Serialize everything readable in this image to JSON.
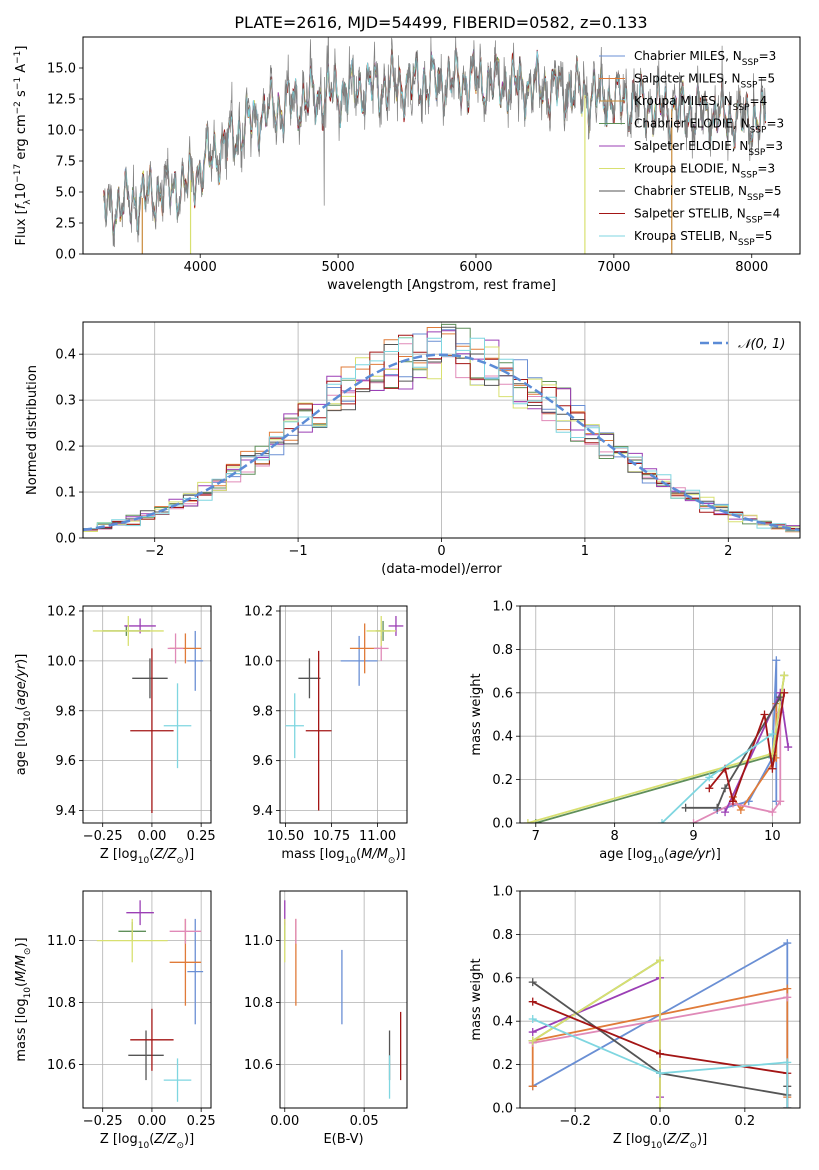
{
  "figure_title": "PLATE=2616, MJD=54499, FIBERID=0582, z=0.133",
  "chart_data": [
    {
      "id": "spectrum",
      "type": "line",
      "title": "PLATE=2616, MJD=54499, FIBERID=0582, z=0.133",
      "xlabel": "wavelength [Angstrom, rest frame]",
      "ylabel": "Flux [f_λ 10^-17 erg cm^-2 s^-1 A^-1]",
      "xlim": [
        3150,
        8350
      ],
      "ylim": [
        0,
        17.5
      ],
      "xticks": [
        4000,
        5000,
        6000,
        7000,
        8000
      ],
      "yticks": [
        0.0,
        2.5,
        5.0,
        7.5,
        10.0,
        12.5,
        15.0
      ],
      "legend_position": "top-right",
      "grid": false,
      "continuum_points": [
        [
          3300,
          3.6
        ],
        [
          3500,
          4.2
        ],
        [
          3700,
          5.0
        ],
        [
          3900,
          5.5
        ],
        [
          4000,
          7.0
        ],
        [
          4200,
          9.0
        ],
        [
          4400,
          11.0
        ],
        [
          4600,
          12.0
        ],
        [
          4800,
          12.5
        ],
        [
          5000,
          13.0
        ],
        [
          5300,
          13.5
        ],
        [
          5600,
          13.8
        ],
        [
          5900,
          14.0
        ],
        [
          6200,
          13.8
        ],
        [
          6500,
          13.4
        ],
        [
          6800,
          12.8
        ],
        [
          7100,
          12.3
        ],
        [
          7400,
          11.7
        ],
        [
          7700,
          11.3
        ],
        [
          8000,
          10.9
        ],
        [
          8100,
          10.7
        ]
      ],
      "spikes": [
        {
          "x": 3580,
          "series": "Kroupa MILES"
        },
        {
          "x": 3930,
          "series": "Kroupa ELODIE"
        },
        {
          "x": 6790,
          "series": "Kroupa ELODIE"
        },
        {
          "x": 7420,
          "series": "Kroupa MILES"
        }
      ],
      "series": [
        {
          "name": "Chabrier MILES, N_SSP=3",
          "color": "#6a8fd4"
        },
        {
          "name": "Salpeter MILES, N_SSP=5",
          "color": "#e07b39"
        },
        {
          "name": "Kroupa MILES, N_SSP=4",
          "color": "#c98a3a"
        },
        {
          "name": "Chabrier ELODIE, N_SSP=3",
          "color": "#5f8f5a"
        },
        {
          "name": "Salpeter ELODIE, N_SSP=3",
          "color": "#9b3fb5"
        },
        {
          "name": "Kroupa ELODIE, N_SSP=3",
          "color": "#d8e070"
        },
        {
          "name": "Chabrier STELIB, N_SSP=5",
          "color": "#555555"
        },
        {
          "name": "Salpeter STELIB, N_SSP=4",
          "color": "#a31515"
        },
        {
          "name": "Kroupa STELIB, N_SSP=5",
          "color": "#7fd6e0"
        }
      ],
      "data_color": "#808080"
    },
    {
      "id": "residuals",
      "type": "step",
      "xlabel": "(data-model)/error",
      "ylabel": "Normed distribution",
      "xlim": [
        -2.5,
        2.5
      ],
      "ylim": [
        0,
        0.47
      ],
      "xticks": [
        -2,
        -1,
        0,
        1,
        2
      ],
      "yticks": [
        0.0,
        0.1,
        0.2,
        0.3,
        0.4
      ],
      "grid": true,
      "legend": "𝒩(0, 1)",
      "legend_position": "top-right",
      "gauss_color": "#5b8bd6",
      "series_colors": [
        "#6a8fd4",
        "#e07b39",
        "#e08ab8",
        "#5f8f5a",
        "#9b3fb5",
        "#d8e070",
        "#555555",
        "#a31515",
        "#7fd6e0"
      ],
      "bins": 50
    },
    {
      "id": "age_vs_Z",
      "type": "errorbar",
      "xlabel": "Z [log10(Z/Z⊙)]",
      "ylabel": "age  [log10(age/yr)]",
      "xlim": [
        -0.35,
        0.3
      ],
      "ylim": [
        9.35,
        10.22
      ],
      "xticks": [
        -0.25,
        0.0,
        0.25
      ],
      "yticks": [
        9.4,
        9.6,
        9.8,
        10.0,
        10.2
      ],
      "grid": true,
      "points": [
        {
          "x": 0.22,
          "y": 10.0,
          "xerr": 0.04,
          "yerr": 0.12,
          "color": "#6a8fd4"
        },
        {
          "x": 0.17,
          "y": 10.05,
          "xerr": 0.08,
          "yerr": 0.06,
          "color": "#e07b39"
        },
        {
          "x": 0.12,
          "y": 10.05,
          "xerr": 0.04,
          "yerr": 0.06,
          "color": "#e08ab8"
        },
        {
          "x": -0.13,
          "y": 10.12,
          "xerr": 0.12,
          "yerr": 0.02,
          "color": "#5f8f5a"
        },
        {
          "x": -0.06,
          "y": 10.14,
          "xerr": 0.08,
          "yerr": 0.03,
          "color": "#9b3fb5"
        },
        {
          "x": -0.12,
          "y": 10.12,
          "xerr": 0.18,
          "yerr": 0.06,
          "color": "#d8e070"
        },
        {
          "x": -0.01,
          "y": 9.93,
          "xerr": 0.09,
          "yerr": 0.08,
          "color": "#555555"
        },
        {
          "x": 0.0,
          "y": 9.72,
          "xerr": 0.11,
          "yerr": 0.33,
          "color": "#a31515"
        },
        {
          "x": 0.13,
          "y": 9.74,
          "xerr": 0.07,
          "yerr": 0.17,
          "color": "#7fd6e0"
        }
      ]
    },
    {
      "id": "age_vs_mass",
      "type": "errorbar",
      "xlabel": "mass [log10(M/M⊙)]",
      "ylabel": "",
      "xlim": [
        10.47,
        11.16
      ],
      "ylim": [
        9.35,
        10.22
      ],
      "xticks": [
        10.5,
        10.75,
        11.0
      ],
      "yticks": [
        9.4,
        9.6,
        9.8,
        10.0,
        10.2
      ],
      "grid": true,
      "points": [
        {
          "x": 10.9,
          "y": 10.0,
          "xerr": 0.1,
          "yerr": 0.1,
          "color": "#6a8fd4"
        },
        {
          "x": 10.93,
          "y": 10.05,
          "xerr": 0.08,
          "yerr": 0.1,
          "color": "#e07b39"
        },
        {
          "x": 11.02,
          "y": 10.05,
          "xerr": 0.04,
          "yerr": 0.05,
          "color": "#e08ab8"
        },
        {
          "x": 11.03,
          "y": 10.12,
          "xerr": 0.04,
          "yerr": 0.04,
          "color": "#5f8f5a"
        },
        {
          "x": 11.1,
          "y": 10.14,
          "xerr": 0.04,
          "yerr": 0.04,
          "color": "#9b3fb5"
        },
        {
          "x": 11.02,
          "y": 10.12,
          "xerr": 0.08,
          "yerr": 0.06,
          "color": "#d8e070"
        },
        {
          "x": 10.63,
          "y": 9.93,
          "xerr": 0.06,
          "yerr": 0.08,
          "color": "#555555"
        },
        {
          "x": 10.68,
          "y": 9.72,
          "xerr": 0.07,
          "yerr": 0.32,
          "color": "#a31515"
        },
        {
          "x": 10.55,
          "y": 9.74,
          "xerr": 0.05,
          "yerr": 0.13,
          "color": "#7fd6e0"
        }
      ]
    },
    {
      "id": "weight_vs_age",
      "type": "line",
      "xlabel": "age  [log10(age/yr)]",
      "ylabel": "mass weight",
      "xlim": [
        6.8,
        10.35
      ],
      "ylim": [
        0,
        1.0
      ],
      "xticks": [
        7,
        8,
        9,
        10
      ],
      "yticks": [
        0.0,
        0.2,
        0.4,
        0.6,
        0.8,
        1.0
      ],
      "grid": true,
      "series": [
        {
          "color": "#6a8fd4",
          "x": [
            9.3,
            9.7,
            10.0,
            10.05,
            10.05
          ],
          "y": [
            0.06,
            0.1,
            0.3,
            0.75,
            0.1
          ]
        },
        {
          "color": "#e07b39",
          "x": [
            9.5,
            9.6,
            10.05,
            10.05
          ],
          "y": [
            0.12,
            0.06,
            0.3,
            0.55
          ]
        },
        {
          "color": "#e08ab8",
          "x": [
            9.0,
            9.5,
            10.0,
            10.1,
            10.1
          ],
          "y": [
            0.0,
            0.09,
            0.05,
            0.1,
            0.51
          ]
        },
        {
          "color": "#5f8f5a",
          "x": [
            7.0,
            10.0,
            10.15
          ],
          "y": [
            0.0,
            0.31,
            0.68
          ]
        },
        {
          "color": "#9b3fb5",
          "x": [
            9.4,
            10.1,
            10.2
          ],
          "y": [
            0.05,
            0.6,
            0.35
          ]
        },
        {
          "color": "#d8e070",
          "x": [
            6.9,
            10.0,
            10.15
          ],
          "y": [
            0.0,
            0.32,
            0.68
          ]
        },
        {
          "color": "#555555",
          "x": [
            8.9,
            9.3,
            9.4,
            10.1
          ],
          "y": [
            0.07,
            0.07,
            0.16,
            0.58
          ]
        },
        {
          "color": "#a31515",
          "x": [
            9.2,
            9.4,
            9.5,
            9.9,
            10.0,
            10.15
          ],
          "y": [
            0.16,
            0.25,
            0.1,
            0.5,
            0.25,
            0.6
          ]
        },
        {
          "color": "#7fd6e0",
          "x": [
            8.6,
            9.2,
            10.0
          ],
          "y": [
            0.0,
            0.21,
            0.41
          ]
        }
      ]
    },
    {
      "id": "mass_vs_Z",
      "type": "errorbar",
      "xlabel": "Z [log10(Z/Z⊙)]",
      "ylabel": "mass [log10(M/M⊙)]",
      "xlim": [
        -0.35,
        0.3
      ],
      "ylim": [
        10.46,
        11.16
      ],
      "xticks": [
        -0.25,
        0.0,
        0.25
      ],
      "yticks": [
        10.6,
        10.8,
        11.0
      ],
      "grid": true,
      "points": [
        {
          "x": 0.22,
          "y": 10.9,
          "xerr": 0.04,
          "yerr": 0.17,
          "color": "#6a8fd4"
        },
        {
          "x": 0.17,
          "y": 10.93,
          "xerr": 0.08,
          "yerr": 0.14,
          "color": "#e07b39"
        },
        {
          "x": 0.17,
          "y": 11.03,
          "xerr": 0.08,
          "yerr": 0.04,
          "color": "#e08ab8"
        },
        {
          "x": -0.1,
          "y": 11.03,
          "xerr": 0.07,
          "yerr": 0.03,
          "color": "#5f8f5a"
        },
        {
          "x": -0.06,
          "y": 11.09,
          "xerr": 0.07,
          "yerr": 0.04,
          "color": "#9b3fb5"
        },
        {
          "x": -0.1,
          "y": 11.0,
          "xerr": 0.18,
          "yerr": 0.07,
          "color": "#d8e070"
        },
        {
          "x": -0.03,
          "y": 10.63,
          "xerr": 0.09,
          "yerr": 0.08,
          "color": "#555555"
        },
        {
          "x": 0.0,
          "y": 10.68,
          "xerr": 0.11,
          "yerr": 0.1,
          "color": "#a31515"
        },
        {
          "x": 0.13,
          "y": 10.55,
          "xerr": 0.07,
          "yerr": 0.07,
          "color": "#7fd6e0"
        }
      ]
    },
    {
      "id": "mass_vs_ebv",
      "type": "errorbar",
      "xlabel": "E(B-V)",
      "ylabel": "",
      "xlim": [
        -0.003,
        0.077
      ],
      "ylim": [
        10.46,
        11.16
      ],
      "xticks": [
        0.0,
        0.05
      ],
      "yticks": [
        10.6,
        10.8,
        11.0
      ],
      "grid": true,
      "points": [
        {
          "x": 0.036,
          "y": 10.85,
          "xerr": 0.0,
          "yerr": 0.12,
          "color": "#6a8fd4"
        },
        {
          "x": 0.007,
          "y": 10.93,
          "xerr": 0.0,
          "yerr": 0.14,
          "color": "#e07b39"
        },
        {
          "x": 0.007,
          "y": 11.03,
          "xerr": 0.0,
          "yerr": 0.04,
          "color": "#e08ab8"
        },
        {
          "x": 0.0,
          "y": 11.03,
          "xerr": 0.0,
          "yerr": 0.03,
          "color": "#5f8f5a"
        },
        {
          "x": 0.0,
          "y": 11.09,
          "xerr": 0.0,
          "yerr": 0.04,
          "color": "#9b3fb5"
        },
        {
          "x": 0.0,
          "y": 11.0,
          "xerr": 0.0,
          "yerr": 0.07,
          "color": "#d8e070"
        },
        {
          "x": 0.066,
          "y": 10.63,
          "xerr": 0.0,
          "yerr": 0.08,
          "color": "#555555"
        },
        {
          "x": 0.073,
          "y": 10.66,
          "xerr": 0.0,
          "yerr": 0.11,
          "color": "#a31515"
        },
        {
          "x": 0.066,
          "y": 10.56,
          "xerr": 0.0,
          "yerr": 0.07,
          "color": "#7fd6e0"
        }
      ]
    },
    {
      "id": "weight_vs_Z",
      "type": "line",
      "xlabel": "Z [log10(Z/Z⊙)]",
      "ylabel": "mass weight",
      "xlim": [
        -0.33,
        0.33
      ],
      "ylim": [
        0,
        1.0
      ],
      "xticks": [
        -0.2,
        0.0,
        0.2
      ],
      "yticks": [
        0.0,
        0.2,
        0.4,
        0.6,
        0.8,
        1.0
      ],
      "grid": true,
      "series": [
        {
          "color": "#6a8fd4",
          "x": [
            -0.3,
            0.3,
            0.3
          ],
          "y": [
            0.1,
            0.76,
            0.0
          ]
        },
        {
          "color": "#e07b39",
          "x": [
            -0.3,
            -0.3,
            0.3,
            0.3
          ],
          "y": [
            0.1,
            0.31,
            0.55,
            0.05
          ]
        },
        {
          "color": "#e08ab8",
          "x": [
            -0.3,
            0.3
          ],
          "y": [
            0.3,
            0.51
          ]
        },
        {
          "color": "#5f8f5a",
          "x": [
            -0.3,
            0.0
          ],
          "y": [
            0.31,
            0.68
          ]
        },
        {
          "color": "#9b3fb5",
          "x": [
            -0.3,
            0.0,
            0.0
          ],
          "y": [
            0.35,
            0.6,
            0.05
          ]
        },
        {
          "color": "#d8e070",
          "x": [
            -0.3,
            0.0,
            0.0
          ],
          "y": [
            0.31,
            0.68,
            0.0
          ]
        },
        {
          "color": "#555555",
          "x": [
            -0.3,
            0.0,
            0.3,
            0.3
          ],
          "y": [
            0.58,
            0.16,
            0.06,
            0.1
          ]
        },
        {
          "color": "#a31515",
          "x": [
            -0.3,
            0.0,
            0.3,
            0.3
          ],
          "y": [
            0.49,
            0.25,
            0.16,
            0.0
          ]
        },
        {
          "color": "#7fd6e0",
          "x": [
            -0.3,
            0.0,
            0.3,
            0.3
          ],
          "y": [
            0.41,
            0.16,
            0.21,
            0.0
          ]
        }
      ]
    }
  ]
}
